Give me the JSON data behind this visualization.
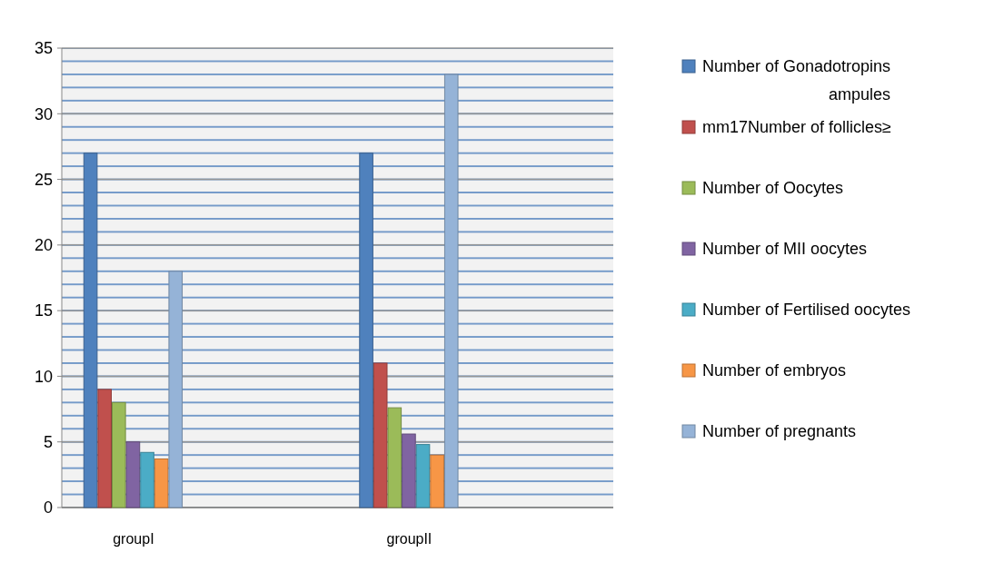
{
  "chart_data": {
    "type": "bar",
    "categories": [
      "groupI",
      "groupII"
    ],
    "series": [
      {
        "name": "Number of Gonadotropins ampules",
        "color": "#4f81bd",
        "values": [
          27,
          27
        ]
      },
      {
        "name": "mm17Number of follicles≥",
        "color": "#c0504d",
        "values": [
          9,
          11
        ]
      },
      {
        "name": "Number of Oocytes",
        "color": "#9bbb59",
        "values": [
          8,
          7.6
        ]
      },
      {
        "name": "Number of MII oocytes",
        "color": "#8064a2",
        "values": [
          5,
          5.6
        ]
      },
      {
        "name": "Number of Fertilised oocytes",
        "color": "#4bacc6",
        "values": [
          4.2,
          4.8
        ]
      },
      {
        "name": "Number of embryos",
        "color": "#f79646",
        "values": [
          3.7,
          4
        ]
      },
      {
        "name": "Number of pregnants",
        "color": "#95b3d7",
        "values": [
          18,
          33
        ]
      }
    ],
    "ylim": [
      0,
      35
    ],
    "yticks": [
      0,
      5,
      10,
      15,
      20,
      25,
      30,
      35
    ],
    "grid": "y",
    "legend": "right"
  }
}
